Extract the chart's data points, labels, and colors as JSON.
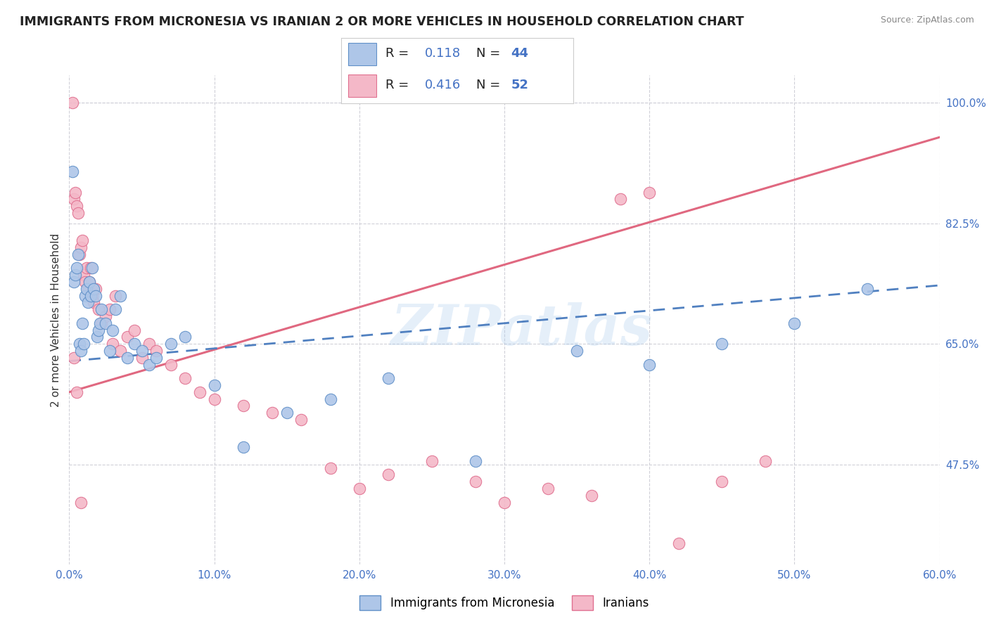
{
  "title": "IMMIGRANTS FROM MICRONESIA VS IRANIAN 2 OR MORE VEHICLES IN HOUSEHOLD CORRELATION CHART",
  "source": "Source: ZipAtlas.com",
  "xlabel_blue": "Immigrants from Micronesia",
  "xlabel_pink": "Iranians",
  "ylabel": "2 or more Vehicles in Household",
  "xlim": [
    0.0,
    60.0
  ],
  "ylim": [
    33.0,
    104.0
  ],
  "xticks": [
    0.0,
    10.0,
    20.0,
    30.0,
    40.0,
    50.0,
    60.0
  ],
  "yticks": [
    47.5,
    65.0,
    82.5,
    100.0
  ],
  "r_blue": 0.118,
  "n_blue": 44,
  "r_pink": 0.416,
  "n_pink": 52,
  "blue_color": "#aec6e8",
  "pink_color": "#f4b8c8",
  "blue_edge_color": "#6090c8",
  "pink_edge_color": "#e07090",
  "blue_line_color": "#5080c0",
  "pink_line_color": "#e06880",
  "watermark": "ZIPatlas",
  "blue_line_x0": 0.0,
  "blue_line_y0": 62.5,
  "blue_line_x1": 60.0,
  "blue_line_y1": 73.5,
  "pink_line_x0": 0.0,
  "pink_line_y0": 58.0,
  "pink_line_x1": 60.0,
  "pink_line_y1": 95.0,
  "blue_scatter_x": [
    0.2,
    0.3,
    0.4,
    0.5,
    0.6,
    0.7,
    0.8,
    0.9,
    1.0,
    1.1,
    1.2,
    1.3,
    1.4,
    1.5,
    1.6,
    1.7,
    1.8,
    1.9,
    2.0,
    2.1,
    2.2,
    2.5,
    2.8,
    3.0,
    3.2,
    3.5,
    4.0,
    4.5,
    5.0,
    5.5,
    6.0,
    7.0,
    8.0,
    10.0,
    12.0,
    15.0,
    18.0,
    22.0,
    28.0,
    35.0,
    40.0,
    45.0,
    50.0,
    55.0
  ],
  "blue_scatter_y": [
    90.0,
    74.0,
    75.0,
    76.0,
    78.0,
    65.0,
    64.0,
    68.0,
    65.0,
    72.0,
    73.0,
    71.0,
    74.0,
    72.0,
    76.0,
    73.0,
    72.0,
    66.0,
    67.0,
    68.0,
    70.0,
    68.0,
    64.0,
    67.0,
    70.0,
    72.0,
    63.0,
    65.0,
    64.0,
    62.0,
    63.0,
    65.0,
    66.0,
    59.0,
    50.0,
    55.0,
    57.0,
    60.0,
    48.0,
    64.0,
    62.0,
    65.0,
    68.0,
    73.0
  ],
  "pink_scatter_x": [
    0.2,
    0.3,
    0.4,
    0.5,
    0.6,
    0.7,
    0.8,
    0.9,
    1.0,
    1.1,
    1.2,
    1.3,
    1.4,
    1.5,
    1.6,
    1.7,
    1.8,
    2.0,
    2.2,
    2.5,
    2.8,
    3.0,
    3.2,
    3.5,
    4.0,
    4.5,
    5.0,
    5.5,
    6.0,
    7.0,
    8.0,
    9.0,
    10.0,
    12.0,
    14.0,
    16.0,
    18.0,
    20.0,
    22.0,
    25.0,
    28.0,
    30.0,
    33.0,
    36.0,
    38.0,
    40.0,
    42.0,
    45.0,
    48.0,
    0.3,
    0.5,
    0.8
  ],
  "pink_scatter_y": [
    100.0,
    86.0,
    87.0,
    85.0,
    84.0,
    78.0,
    79.0,
    80.0,
    75.0,
    74.0,
    76.0,
    73.0,
    74.0,
    76.0,
    72.0,
    71.0,
    73.0,
    70.0,
    68.0,
    69.0,
    70.0,
    65.0,
    72.0,
    64.0,
    66.0,
    67.0,
    63.0,
    65.0,
    64.0,
    62.0,
    60.0,
    58.0,
    57.0,
    56.0,
    55.0,
    54.0,
    47.0,
    44.0,
    46.0,
    48.0,
    45.0,
    42.0,
    44.0,
    43.0,
    86.0,
    87.0,
    36.0,
    45.0,
    48.0,
    63.0,
    58.0,
    42.0
  ]
}
